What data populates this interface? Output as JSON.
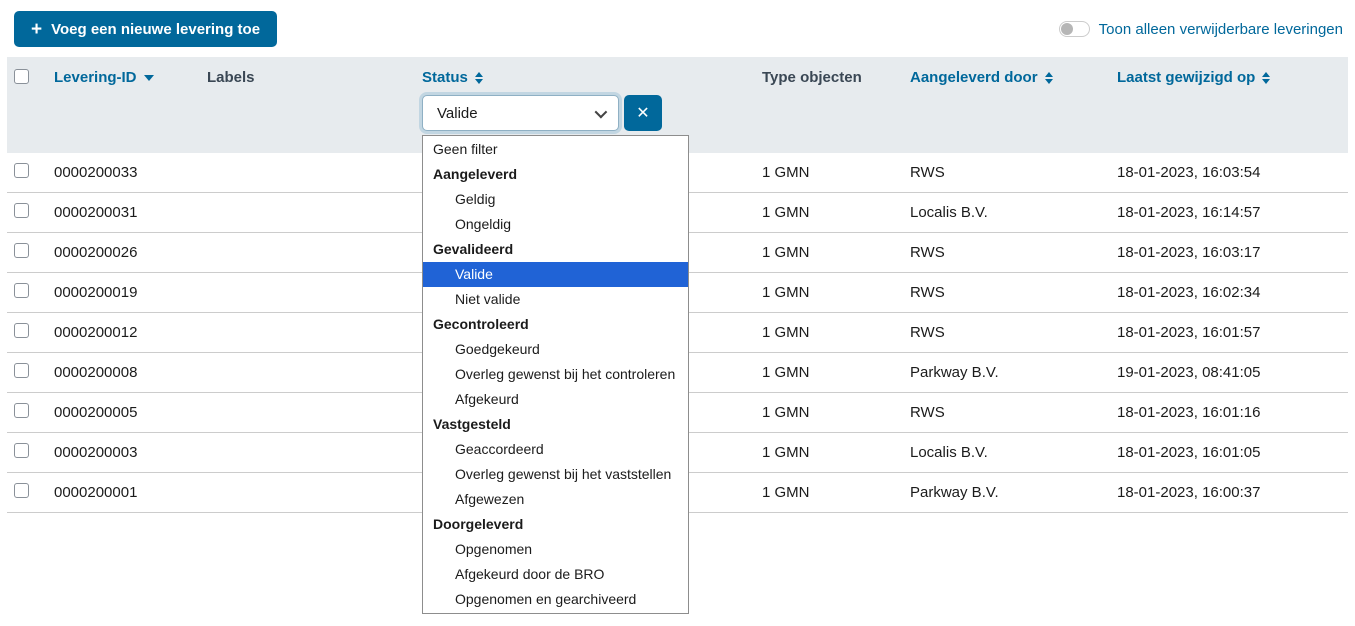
{
  "toolbar": {
    "add_button_label": "Voeg een nieuwe levering toe",
    "toggle_label": "Toon alleen verwijderbare leveringen",
    "toggle_state": "off"
  },
  "colors": {
    "primary_blue": "#01689b",
    "header_band": "#e7ebee",
    "selected_option": "#2063d6",
    "plain_header_text": "#3a4754"
  },
  "table": {
    "columns": [
      {
        "label": "Levering-ID",
        "sort": "desc"
      },
      {
        "label": "Labels",
        "sort": "none"
      },
      {
        "label": "Status",
        "sort": "both"
      },
      {
        "label": "Type objecten",
        "sort": "none"
      },
      {
        "label": "Aangeleverd door",
        "sort": "both"
      },
      {
        "label": "Laatst gewijzigd op",
        "sort": "both"
      }
    ],
    "rows": [
      {
        "id": "0000200033",
        "type": "1 GMN",
        "aangeleverd_door": "RWS",
        "laatst_gewijzigd": "18-01-2023, 16:03:54"
      },
      {
        "id": "0000200031",
        "type": "1 GMN",
        "aangeleverd_door": "Localis B.V.",
        "laatst_gewijzigd": "18-01-2023, 16:14:57"
      },
      {
        "id": "0000200026",
        "type": "1 GMN",
        "aangeleverd_door": "RWS",
        "laatst_gewijzigd": "18-01-2023, 16:03:17"
      },
      {
        "id": "0000200019",
        "type": "1 GMN",
        "aangeleverd_door": "RWS",
        "laatst_gewijzigd": "18-01-2023, 16:02:34"
      },
      {
        "id": "0000200012",
        "type": "1 GMN",
        "aangeleverd_door": "RWS",
        "laatst_gewijzigd": "18-01-2023, 16:01:57"
      },
      {
        "id": "0000200008",
        "type": "1 GMN",
        "aangeleverd_door": "Parkway B.V.",
        "laatst_gewijzigd": "19-01-2023, 08:41:05"
      },
      {
        "id": "0000200005",
        "type": "1 GMN",
        "aangeleverd_door": "RWS",
        "laatst_gewijzigd": "18-01-2023, 16:01:16"
      },
      {
        "id": "0000200003",
        "type": "1 GMN",
        "aangeleverd_door": "Localis B.V.",
        "laatst_gewijzigd": "18-01-2023, 16:01:05"
      },
      {
        "id": "0000200001",
        "type": "1 GMN",
        "aangeleverd_door": "Parkway B.V.",
        "laatst_gewijzigd": "18-01-2023, 16:00:37"
      }
    ]
  },
  "status_filter": {
    "selected_value": "Valide",
    "clear_button_label": "✕",
    "options": [
      {
        "label": "Geen filter",
        "style": "option"
      },
      {
        "label": "Aangeleverd",
        "style": "group"
      },
      {
        "label": "Geldig",
        "style": "child"
      },
      {
        "label": "Ongeldig",
        "style": "child"
      },
      {
        "label": "Gevalideerd",
        "style": "group"
      },
      {
        "label": "Valide",
        "style": "child",
        "selected": true
      },
      {
        "label": "Niet valide",
        "style": "child"
      },
      {
        "label": "Gecontroleerd",
        "style": "group"
      },
      {
        "label": "Goedgekeurd",
        "style": "child"
      },
      {
        "label": "Overleg gewenst bij het controleren",
        "style": "child"
      },
      {
        "label": "Afgekeurd",
        "style": "child"
      },
      {
        "label": "Vastgesteld",
        "style": "group"
      },
      {
        "label": "Geaccordeerd",
        "style": "child"
      },
      {
        "label": "Overleg gewenst bij het vaststellen",
        "style": "child"
      },
      {
        "label": "Afgewezen",
        "style": "child"
      },
      {
        "label": "Doorgeleverd",
        "style": "group"
      },
      {
        "label": "Opgenomen",
        "style": "child"
      },
      {
        "label": "Afgekeurd door de BRO",
        "style": "child"
      },
      {
        "label": "Opgenomen en gearchiveerd",
        "style": "child"
      }
    ]
  }
}
